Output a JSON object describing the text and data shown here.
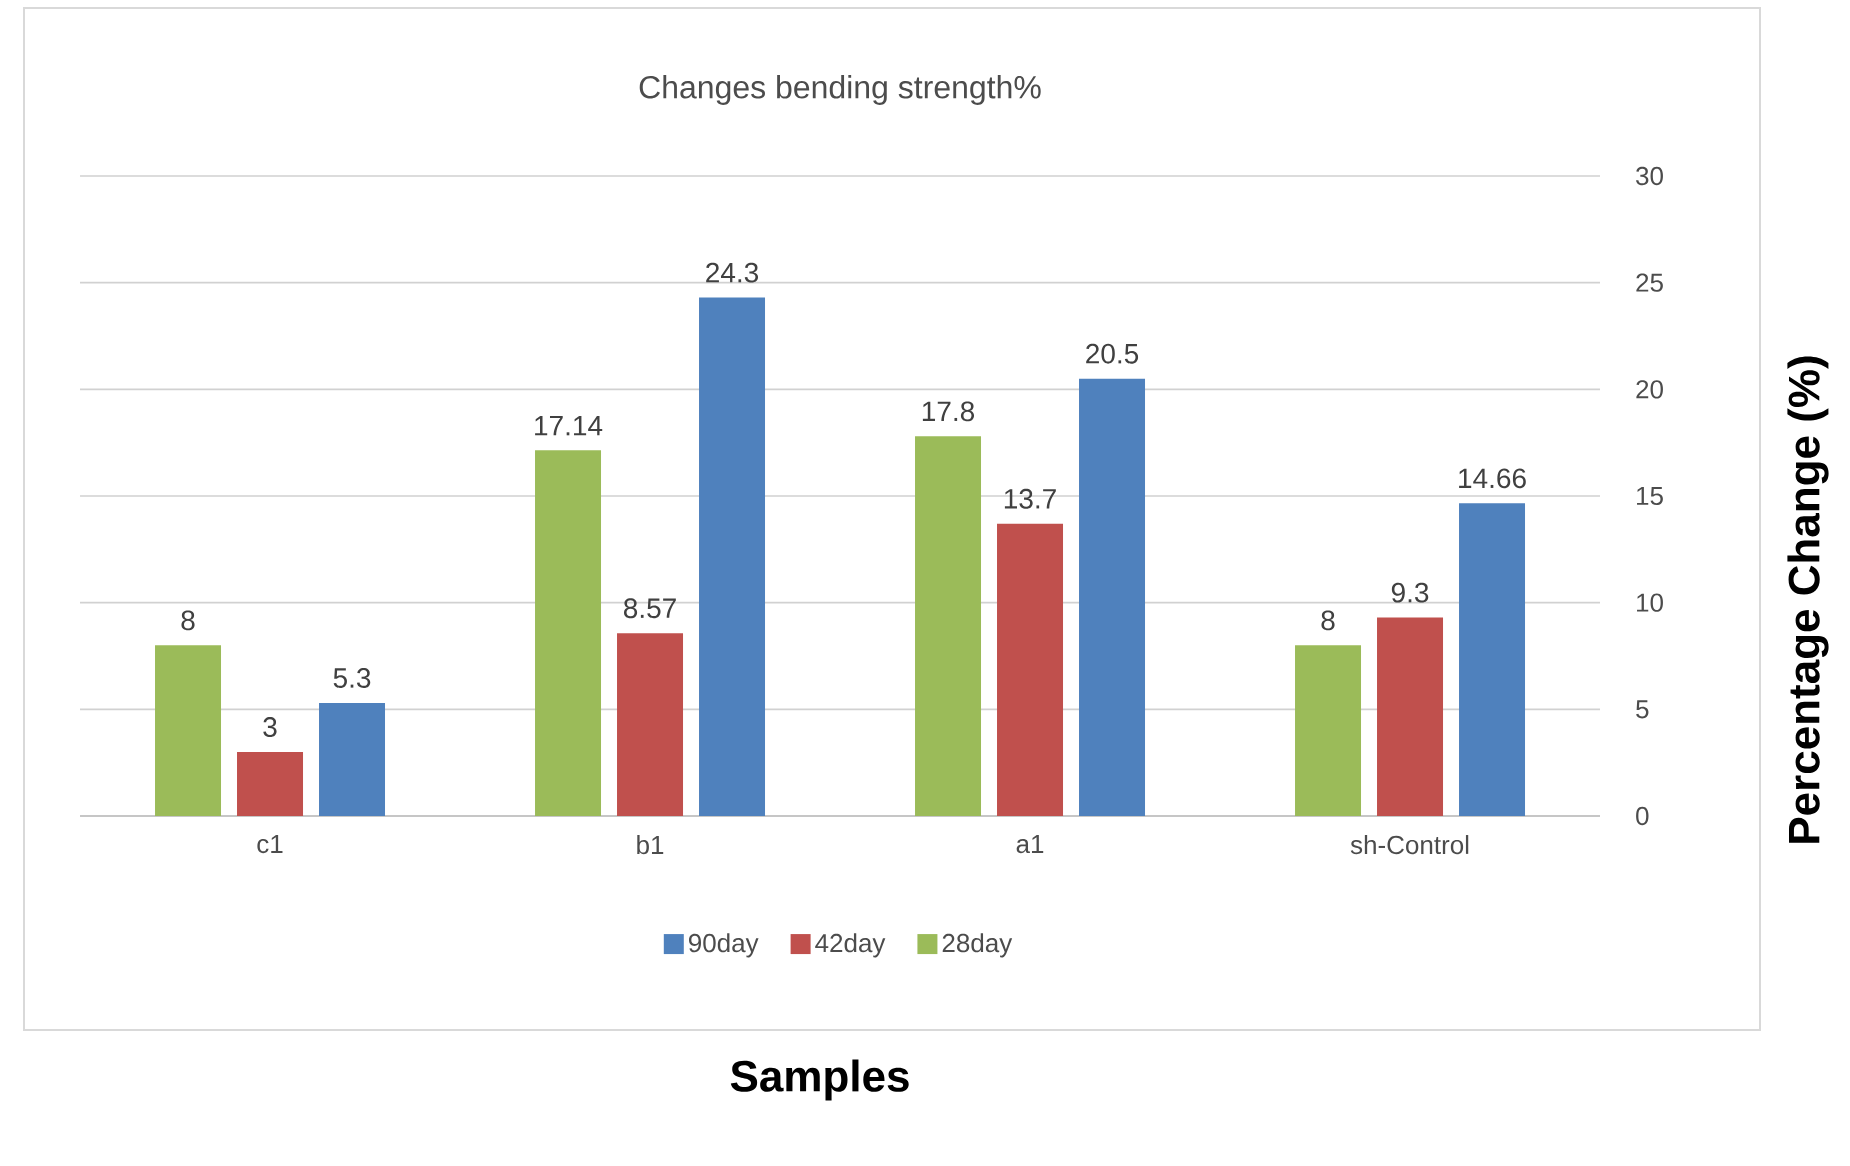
{
  "chart_data": {
    "type": "bar",
    "title": "Changes bending strength%",
    "xlabel": "Samples",
    "ylabel": "Percentage Change (%)",
    "categories": [
      "c1",
      "b1",
      "a1",
      "sh-Control"
    ],
    "series": [
      {
        "name": "28day",
        "color": "#9bbb59",
        "values": [
          8,
          17.14,
          17.8,
          8
        ]
      },
      {
        "name": "42day",
        "color": "#c0504d",
        "values": [
          3,
          8.57,
          13.7,
          9.3
        ]
      },
      {
        "name": "90day",
        "color": "#4f81bd",
        "values": [
          5.3,
          24.3,
          20.5,
          14.66
        ]
      }
    ],
    "ylim": [
      0,
      30
    ],
    "yticks": [
      0,
      5,
      10,
      15,
      20,
      25,
      30
    ],
    "grid": "y",
    "legend": "bottom",
    "data_labels": true
  }
}
